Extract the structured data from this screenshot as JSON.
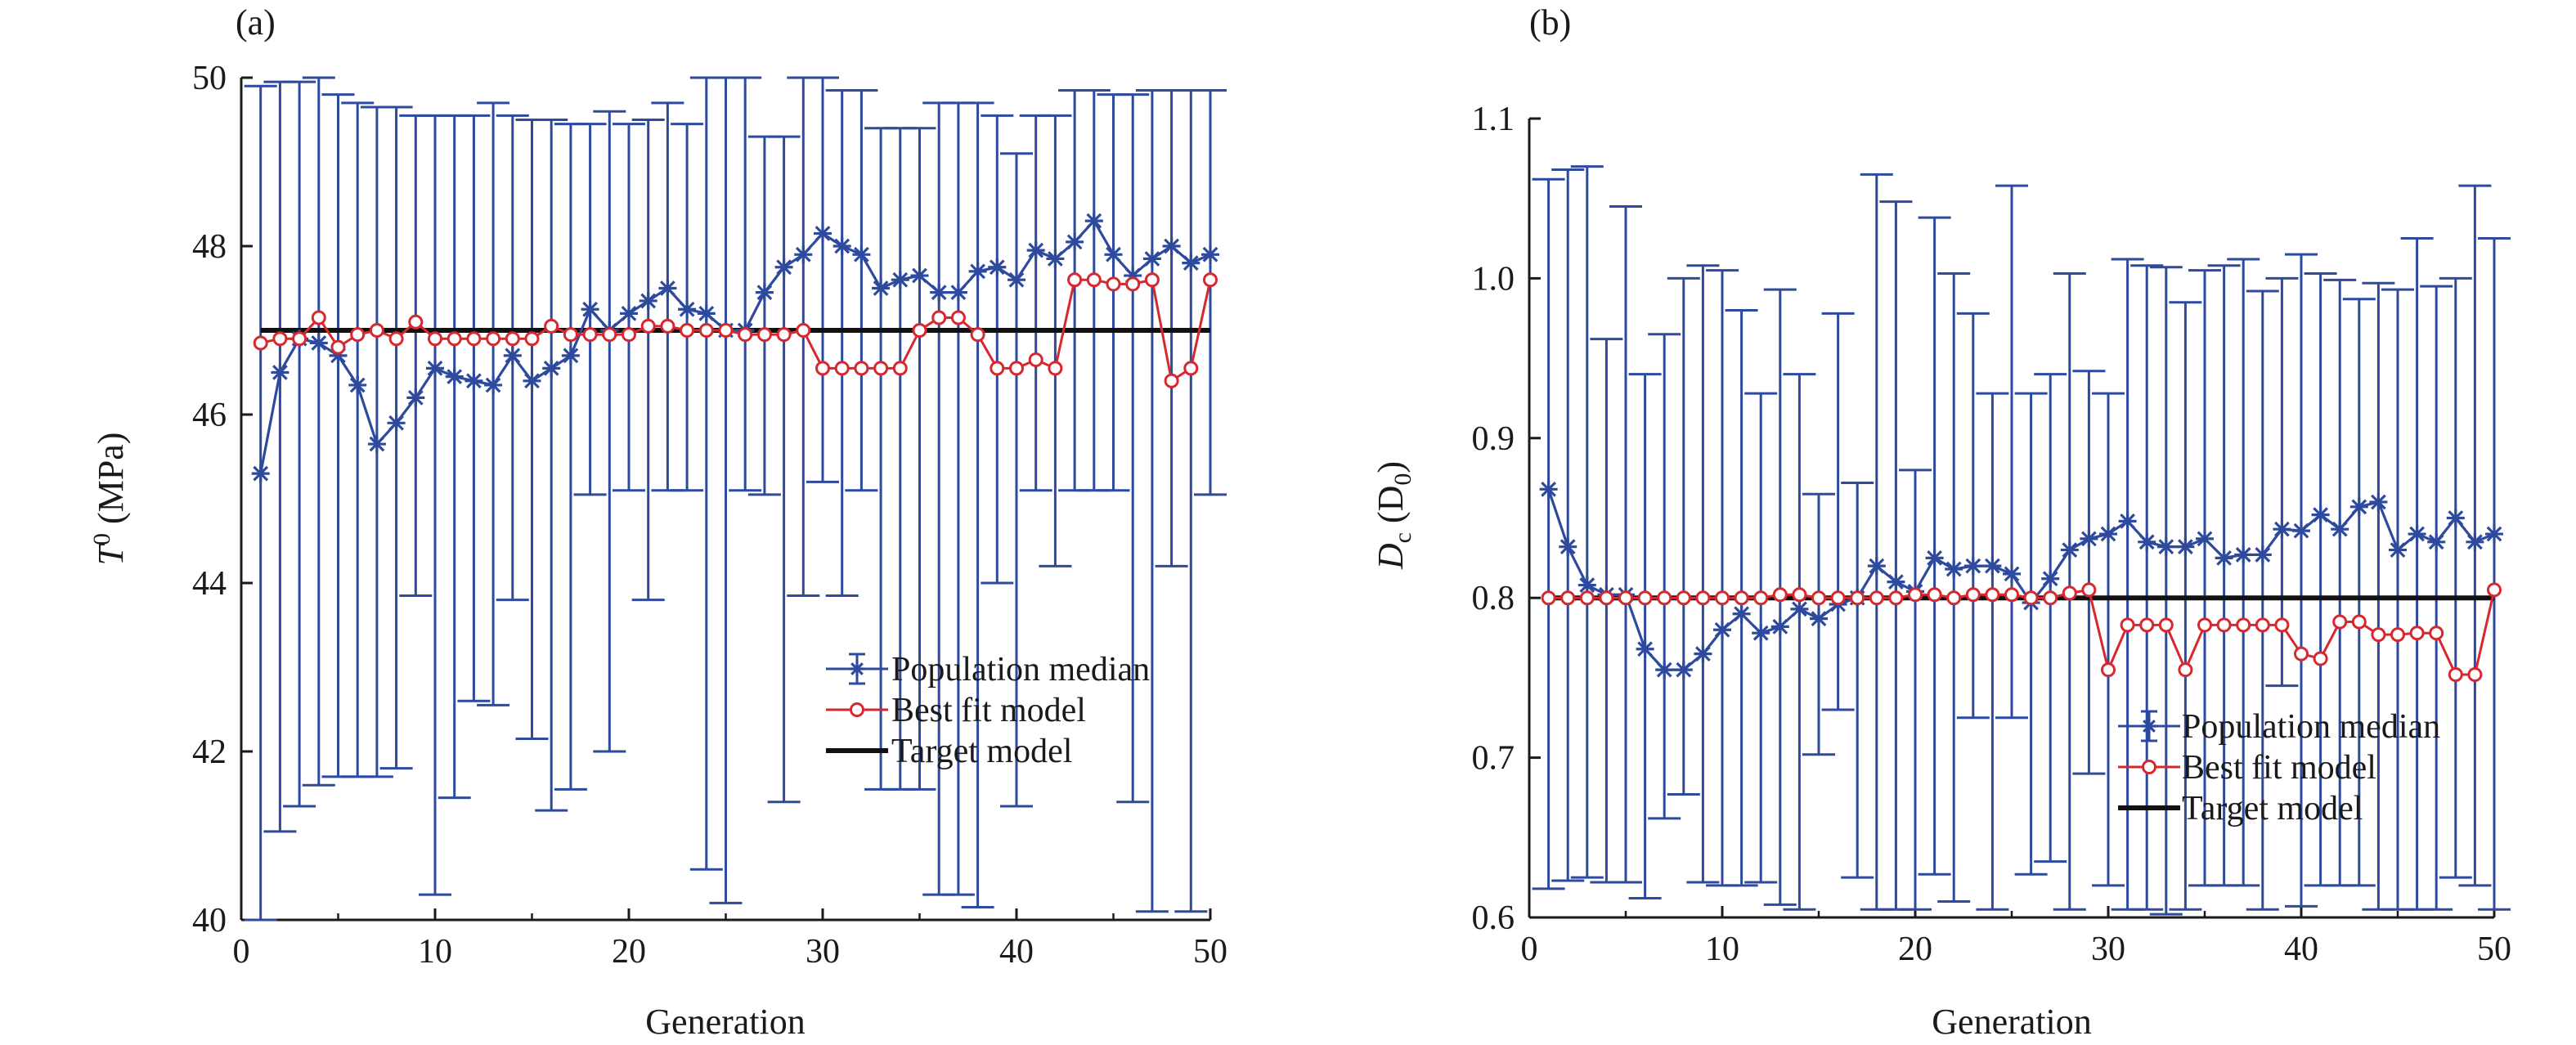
{
  "chart_data": [
    {
      "type": "line",
      "panel": "(a)",
      "xlabel": "Generation",
      "ylabel_main": "T",
      "ylabel_sup": "0",
      "ylabel_rest": " (MPa)",
      "xlim": [
        0,
        50
      ],
      "ylim": [
        40,
        50
      ],
      "xticks": [
        0,
        10,
        20,
        30,
        40,
        50
      ],
      "yticks": [
        40,
        42,
        44,
        46,
        48,
        50
      ],
      "ytick_decimals": 0,
      "legend_position": "bottom-right",
      "series": [
        {
          "name": "Population median",
          "color": "#2e4a9e",
          "marker": "asterisk",
          "x": [
            1,
            2,
            3,
            4,
            5,
            6,
            7,
            8,
            9,
            10,
            11,
            12,
            13,
            14,
            15,
            16,
            17,
            18,
            19,
            20,
            21,
            22,
            23,
            24,
            25,
            26,
            27,
            28,
            29,
            30,
            31,
            32,
            33,
            34,
            35,
            36,
            37,
            38,
            39,
            40,
            41,
            42,
            43,
            44,
            45,
            46,
            47,
            48,
            49,
            50
          ],
          "y": [
            45.3,
            46.5,
            46.9,
            46.85,
            46.7,
            46.35,
            45.65,
            45.9,
            46.2,
            46.55,
            46.45,
            46.4,
            46.35,
            46.7,
            46.4,
            46.55,
            46.7,
            47.25,
            47.0,
            47.2,
            47.35,
            47.5,
            47.25,
            47.2,
            47.0,
            47.0,
            47.45,
            47.75,
            47.9,
            48.15,
            48.0,
            47.9,
            47.5,
            47.6,
            47.65,
            47.45,
            47.45,
            47.7,
            47.75,
            47.6,
            47.95,
            47.85,
            48.05,
            48.3,
            47.9,
            47.65,
            47.85,
            48.0,
            47.8,
            47.9
          ],
          "err_low": [
            40.0,
            41.05,
            41.35,
            41.6,
            41.7,
            41.7,
            41.7,
            41.8,
            43.85,
            40.3,
            41.45,
            42.6,
            42.55,
            43.8,
            42.15,
            41.3,
            41.55,
            45.05,
            42.0,
            45.1,
            43.8,
            45.1,
            45.1,
            40.6,
            40.2,
            45.1,
            45.05,
            41.4,
            43.85,
            45.2,
            43.85,
            45.1,
            41.55,
            41.55,
            41.55,
            40.3,
            40.3,
            40.15,
            44.0,
            41.35,
            45.1,
            44.2,
            45.1,
            45.1,
            45.1,
            41.4,
            40.1,
            44.2,
            40.1,
            45.05
          ],
          "err_high": [
            49.9,
            49.95,
            49.95,
            50.0,
            49.8,
            49.7,
            49.65,
            49.65,
            49.55,
            49.55,
            49.55,
            49.55,
            49.7,
            49.55,
            49.5,
            49.5,
            49.45,
            49.45,
            49.6,
            49.45,
            49.5,
            49.7,
            49.45,
            50.0,
            50.0,
            50.0,
            49.3,
            49.3,
            50.0,
            50.0,
            49.85,
            49.85,
            49.4,
            49.4,
            49.4,
            49.7,
            49.7,
            49.7,
            49.55,
            49.1,
            49.55,
            49.55,
            49.85,
            49.85,
            49.8,
            49.8,
            49.85,
            49.85,
            49.85,
            49.85
          ]
        },
        {
          "name": "Best fit model",
          "color": "#d7282f",
          "marker": "circle",
          "x": [
            1,
            2,
            3,
            4,
            5,
            6,
            7,
            8,
            9,
            10,
            11,
            12,
            13,
            14,
            15,
            16,
            17,
            18,
            19,
            20,
            21,
            22,
            23,
            24,
            25,
            26,
            27,
            28,
            29,
            30,
            31,
            32,
            33,
            34,
            35,
            36,
            37,
            38,
            39,
            40,
            41,
            42,
            43,
            44,
            45,
            46,
            47,
            48,
            49,
            50
          ],
          "y": [
            46.85,
            46.9,
            46.9,
            47.15,
            46.8,
            46.95,
            47.0,
            46.9,
            47.1,
            46.9,
            46.9,
            46.9,
            46.9,
            46.9,
            46.9,
            47.05,
            46.95,
            46.95,
            46.95,
            46.95,
            47.05,
            47.05,
            47.0,
            47.0,
            47.0,
            46.95,
            46.95,
            46.95,
            47.0,
            46.55,
            46.55,
            46.55,
            46.55,
            46.55,
            47.0,
            47.15,
            47.15,
            46.95,
            46.55,
            46.55,
            46.65,
            46.55,
            47.6,
            47.6,
            47.55,
            47.55,
            47.6,
            46.4,
            46.55,
            47.6
          ]
        },
        {
          "name": "Target model",
          "color": "#111111",
          "marker": "none",
          "value": 47.0
        }
      ]
    },
    {
      "type": "line",
      "panel": "(b)",
      "xlabel": "Generation",
      "ylabel_main": "D",
      "ylabel_sub": "c",
      "ylabel_rest": " (D",
      "ylabel_sub2": "0",
      "ylabel_end": ")",
      "xlim": [
        0,
        50
      ],
      "ylim": [
        0.6,
        1.1
      ],
      "xticks": [
        0,
        10,
        20,
        30,
        40,
        50
      ],
      "yticks": [
        0.6,
        0.7,
        0.8,
        0.9,
        1.0,
        1.1
      ],
      "ytick_decimals": 1,
      "legend_position": "bottom-right",
      "series": [
        {
          "name": "Population median",
          "color": "#2e4a9e",
          "marker": "asterisk",
          "x": [
            1,
            2,
            3,
            4,
            5,
            6,
            7,
            8,
            9,
            10,
            11,
            12,
            13,
            14,
            15,
            16,
            17,
            18,
            19,
            20,
            21,
            22,
            23,
            24,
            25,
            26,
            27,
            28,
            29,
            30,
            31,
            32,
            33,
            34,
            35,
            36,
            37,
            38,
            39,
            40,
            41,
            42,
            43,
            44,
            45,
            46,
            47,
            48,
            49,
            50
          ],
          "y": [
            0.868,
            0.832,
            0.808,
            0.802,
            0.802,
            0.768,
            0.755,
            0.755,
            0.765,
            0.78,
            0.79,
            0.778,
            0.782,
            0.793,
            0.787,
            0.796,
            0.8,
            0.82,
            0.81,
            0.804,
            0.825,
            0.818,
            0.82,
            0.82,
            0.815,
            0.797,
            0.812,
            0.83,
            0.837,
            0.84,
            0.848,
            0.835,
            0.832,
            0.832,
            0.837,
            0.825,
            0.827,
            0.827,
            0.843,
            0.842,
            0.852,
            0.843,
            0.857,
            0.86,
            0.83,
            0.84,
            0.835,
            0.85,
            0.835,
            0.84
          ],
          "err_low": [
            0.618,
            0.623,
            0.625,
            0.622,
            0.622,
            0.612,
            0.662,
            0.677,
            0.622,
            0.62,
            0.62,
            0.622,
            0.608,
            0.605,
            0.702,
            0.73,
            0.625,
            0.605,
            0.605,
            0.605,
            0.627,
            0.61,
            0.725,
            0.605,
            0.725,
            0.627,
            0.635,
            0.605,
            0.69,
            0.62,
            0.605,
            0.605,
            0.602,
            0.605,
            0.62,
            0.62,
            0.62,
            0.605,
            0.745,
            0.607,
            0.62,
            0.62,
            0.62,
            0.605,
            0.605,
            0.605,
            0.605,
            0.625,
            0.62,
            0.605
          ],
          "err_high": [
            1.062,
            1.068,
            1.07,
            0.962,
            1.045,
            0.94,
            0.965,
            1.0,
            1.008,
            1.005,
            0.98,
            0.928,
            0.993,
            0.94,
            0.865,
            0.978,
            0.872,
            1.065,
            1.048,
            0.88,
            1.038,
            1.003,
            0.978,
            0.928,
            1.058,
            0.928,
            0.94,
            1.003,
            0.942,
            0.928,
            1.012,
            1.008,
            1.007,
            0.985,
            1.005,
            1.008,
            1.012,
            0.992,
            1.0,
            1.015,
            1.003,
            0.999,
            0.987,
            0.997,
            0.993,
            1.025,
            0.995,
            1.0,
            1.058,
            1.025
          ]
        },
        {
          "name": "Best fit model",
          "color": "#d7282f",
          "marker": "circle",
          "x": [
            1,
            2,
            3,
            4,
            5,
            6,
            7,
            8,
            9,
            10,
            11,
            12,
            13,
            14,
            15,
            16,
            17,
            18,
            19,
            20,
            21,
            22,
            23,
            24,
            25,
            26,
            27,
            28,
            29,
            30,
            31,
            32,
            33,
            34,
            35,
            36,
            37,
            38,
            39,
            40,
            41,
            42,
            43,
            44,
            45,
            46,
            47,
            48,
            49,
            50
          ],
          "y": [
            0.8,
            0.8,
            0.8,
            0.8,
            0.8,
            0.8,
            0.8,
            0.8,
            0.8,
            0.8,
            0.8,
            0.8,
            0.802,
            0.802,
            0.8,
            0.8,
            0.8,
            0.8,
            0.8,
            0.802,
            0.802,
            0.8,
            0.802,
            0.802,
            0.802,
            0.8,
            0.8,
            0.803,
            0.805,
            0.755,
            0.783,
            0.783,
            0.783,
            0.755,
            0.783,
            0.783,
            0.783,
            0.783,
            0.783,
            0.765,
            0.762,
            0.785,
            0.785,
            0.777,
            0.777,
            0.778,
            0.778,
            0.752,
            0.752,
            0.805
          ]
        },
        {
          "name": "Target model",
          "color": "#111111",
          "marker": "none",
          "value": 0.8
        }
      ]
    }
  ]
}
